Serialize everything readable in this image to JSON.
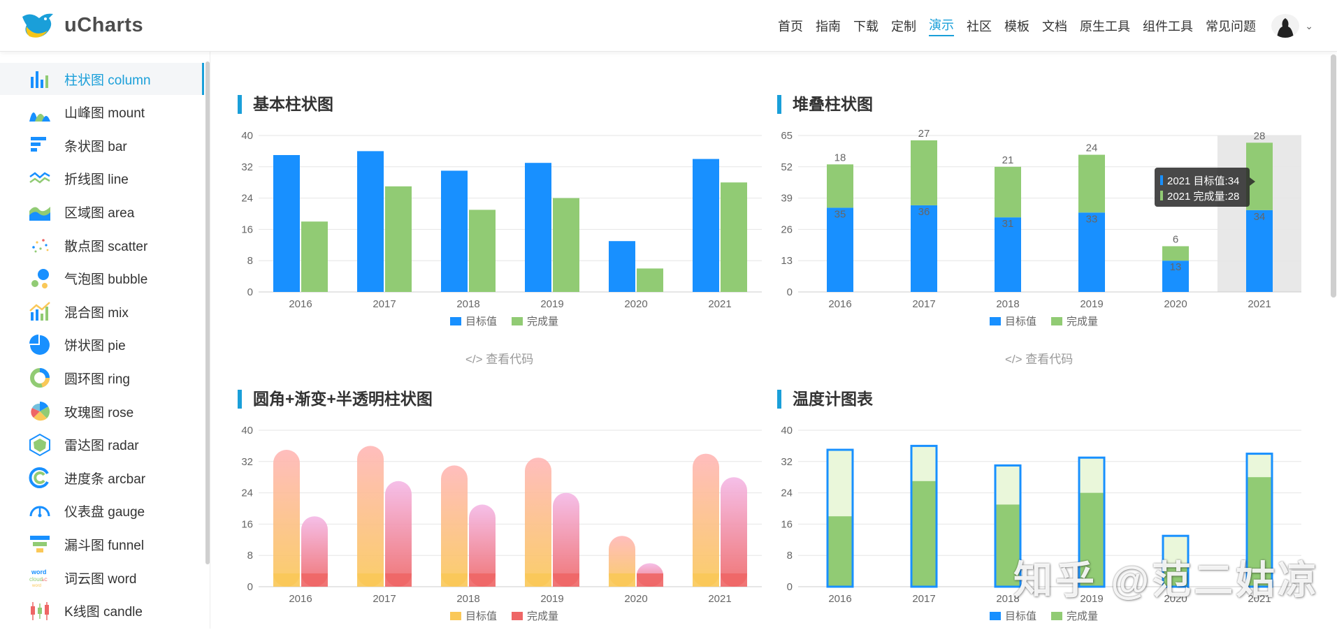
{
  "header": {
    "logo_text": "uCharts",
    "nav": [
      "首页",
      "指南",
      "下载",
      "定制",
      "演示",
      "社区",
      "模板",
      "文档",
      "原生工具",
      "组件工具",
      "常见问题"
    ],
    "active_nav": "演示"
  },
  "sidebar": {
    "items": [
      {
        "label": "柱状图  column",
        "icon": "column-chart-icon"
      },
      {
        "label": "山峰图  mount",
        "icon": "mount-chart-icon"
      },
      {
        "label": "条状图  bar",
        "icon": "bar-chart-icon"
      },
      {
        "label": "折线图  line",
        "icon": "line-chart-icon"
      },
      {
        "label": "区域图  area",
        "icon": "area-chart-icon"
      },
      {
        "label": "散点图  scatter",
        "icon": "scatter-chart-icon"
      },
      {
        "label": "气泡图  bubble",
        "icon": "bubble-chart-icon"
      },
      {
        "label": "混合图  mix",
        "icon": "mix-chart-icon"
      },
      {
        "label": "饼状图  pie",
        "icon": "pie-chart-icon"
      },
      {
        "label": "圆环图  ring",
        "icon": "ring-chart-icon"
      },
      {
        "label": "玫瑰图  rose",
        "icon": "rose-chart-icon"
      },
      {
        "label": "雷达图  radar",
        "icon": "radar-chart-icon"
      },
      {
        "label": "进度条  arcbar",
        "icon": "arcbar-chart-icon"
      },
      {
        "label": "仪表盘  gauge",
        "icon": "gauge-chart-icon"
      },
      {
        "label": "漏斗图  funnel",
        "icon": "funnel-chart-icon"
      },
      {
        "label": "词云图  word",
        "icon": "word-cloud-icon"
      },
      {
        "label": "K线图  candle",
        "icon": "candle-chart-icon"
      }
    ],
    "active_index": 0
  },
  "panels": {
    "p1_title": "基本柱状图",
    "p2_title": "堆叠柱状图",
    "p3_title": "圆角+渐变+半透明柱状图",
    "p4_title": "温度计图表",
    "code_link": "</> 查看代码"
  },
  "tooltip": {
    "line1": "2021 目标值:34",
    "line2": "2021 完成量:28"
  },
  "watermark": "知乎 @范二姑凉",
  "colors": {
    "accent": "#1a9fd9",
    "series_blue": "#1890ff",
    "series_green": "#91cb74",
    "gradient_orange": "#fac858",
    "gradient_red": "#ee6666",
    "thermo_fill": "#eaf7da"
  },
  "chart_data": [
    {
      "type": "bar",
      "title": "基本柱状图",
      "categories": [
        "2016",
        "2017",
        "2018",
        "2019",
        "2020",
        "2021"
      ],
      "series": [
        {
          "name": "目标值",
          "values": [
            35,
            36,
            31,
            33,
            13,
            34
          ]
        },
        {
          "name": "完成量",
          "values": [
            18,
            27,
            21,
            24,
            6,
            28
          ]
        }
      ],
      "yticks": [
        0,
        8,
        16,
        24,
        32,
        40
      ],
      "ylim": [
        0,
        40
      ],
      "legend": "bottom"
    },
    {
      "type": "bar",
      "stacked": true,
      "title": "堆叠柱状图",
      "categories": [
        "2016",
        "2017",
        "2018",
        "2019",
        "2020",
        "2021"
      ],
      "series": [
        {
          "name": "目标值",
          "values": [
            35,
            36,
            31,
            33,
            13,
            34
          ]
        },
        {
          "name": "完成量",
          "values": [
            18,
            27,
            21,
            24,
            6,
            28
          ]
        }
      ],
      "yticks": [
        0,
        13,
        26,
        39,
        52,
        65
      ],
      "ylim": [
        0,
        65
      ],
      "highlighted_category": "2021",
      "legend": "bottom"
    },
    {
      "type": "bar",
      "title": "圆角+渐变+半透明柱状图",
      "categories": [
        "2016",
        "2017",
        "2018",
        "2019",
        "2020",
        "2021"
      ],
      "series": [
        {
          "name": "目标值",
          "values": [
            35,
            36,
            31,
            33,
            13,
            34
          ]
        },
        {
          "name": "完成量",
          "values": [
            18,
            27,
            21,
            24,
            6,
            28
          ]
        }
      ],
      "yticks": [
        0,
        8,
        16,
        24,
        32,
        40
      ],
      "ylim": [
        0,
        40
      ],
      "legend": "bottom"
    },
    {
      "type": "bar",
      "variant": "thermometer",
      "title": "温度计图表",
      "categories": [
        "2016",
        "2017",
        "2018",
        "2019",
        "2020",
        "2021"
      ],
      "series": [
        {
          "name": "目标值",
          "values": [
            35,
            36,
            31,
            33,
            13,
            34
          ]
        },
        {
          "name": "完成量",
          "values": [
            18,
            27,
            21,
            24,
            6,
            28
          ]
        }
      ],
      "yticks": [
        0,
        8,
        16,
        24,
        32,
        40
      ],
      "ylim": [
        0,
        40
      ],
      "legend": "bottom"
    }
  ]
}
